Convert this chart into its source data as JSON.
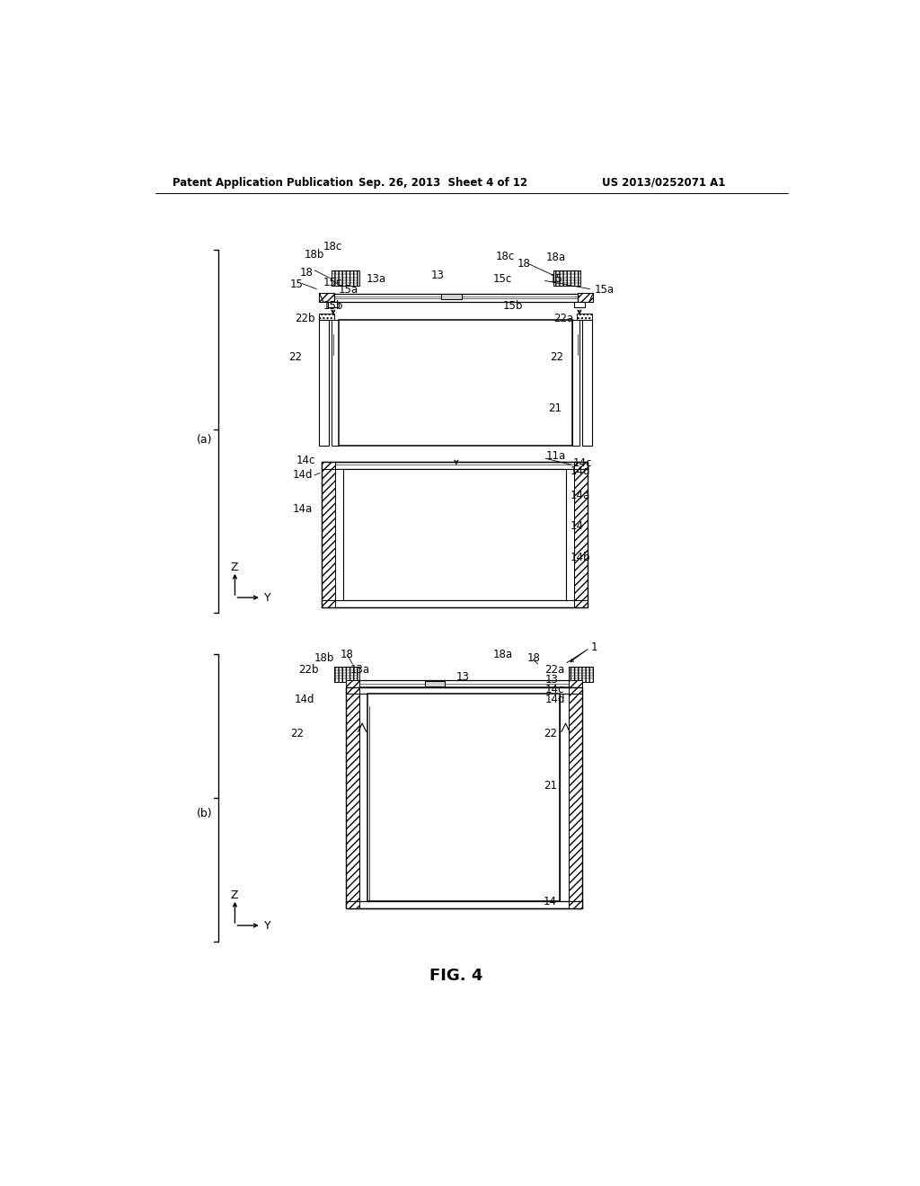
{
  "title_left": "Patent Application Publication",
  "title_center": "Sep. 26, 2013  Sheet 4 of 12",
  "title_right": "US 2013/0252071 A1",
  "fig_label": "FIG. 4",
  "bg": "#ffffff",
  "lc": "#000000",
  "fs": 8.5
}
